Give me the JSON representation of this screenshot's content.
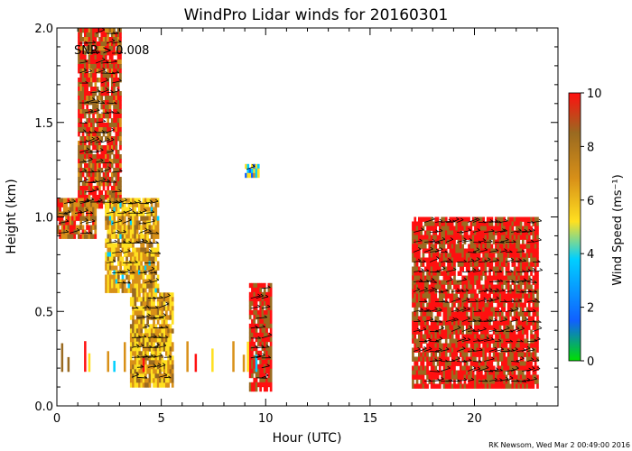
{
  "chart_data": {
    "type": "heatmap",
    "title": "WindPro Lidar winds for 20160301",
    "xlabel": "Hour (UTC)",
    "ylabel": "Height (km)",
    "xlim": [
      0,
      24
    ],
    "ylim": [
      0,
      2.0
    ],
    "x_ticks": [
      0,
      5,
      10,
      15,
      20
    ],
    "x_tick_labels": [
      "0",
      "5",
      "10",
      "15",
      "20"
    ],
    "y_ticks": [
      0.0,
      0.5,
      1.0,
      1.5,
      2.0
    ],
    "y_tick_labels": [
      "0.0",
      "0.5",
      "1.0",
      "1.5",
      "2.0"
    ],
    "annotation": "SNR > 0.008",
    "footer": "RK Newsom, Wed Mar  2 00:49:00 2016",
    "colorbar": {
      "label": "Wind Speed (ms⁻¹)",
      "min": 0,
      "max": 10,
      "ticks": [
        0,
        2,
        4,
        6,
        8,
        10
      ],
      "tick_labels": [
        "0",
        "2",
        "4",
        "6",
        "8",
        "10"
      ],
      "colors": [
        "#00e000",
        "#1060ff",
        "#00d0ff",
        "#ffe020",
        "#d89018",
        "#9a6a20",
        "#ff1010"
      ]
    },
    "regions": [
      {
        "name": "upper-jet-column",
        "x": [
          1.0,
          3.0
        ],
        "y": [
          1.05,
          2.0
        ],
        "speed": 9
      },
      {
        "name": "mid-column",
        "x": [
          2.3,
          4.8
        ],
        "y": [
          0.6,
          1.1
        ],
        "speed": 6
      },
      {
        "name": "low-column",
        "x": [
          3.5,
          5.5
        ],
        "y": [
          0.1,
          0.6
        ],
        "speed": 6.5
      },
      {
        "name": "early-layer",
        "x": [
          0.0,
          1.8
        ],
        "y": [
          0.9,
          1.1
        ],
        "speed": 8
      },
      {
        "name": "isolated-patch",
        "x": [
          9.0,
          9.6
        ],
        "y": [
          1.22,
          1.28
        ],
        "speed": 4
      },
      {
        "name": "afternoon-column",
        "x": [
          9.2,
          10.2
        ],
        "y": [
          0.1,
          0.65
        ],
        "speed": 9.5
      },
      {
        "name": "evening-block",
        "x": [
          17.0,
          23.0
        ],
        "y": [
          0.1,
          1.0
        ],
        "speed": 9.8
      }
    ]
  }
}
